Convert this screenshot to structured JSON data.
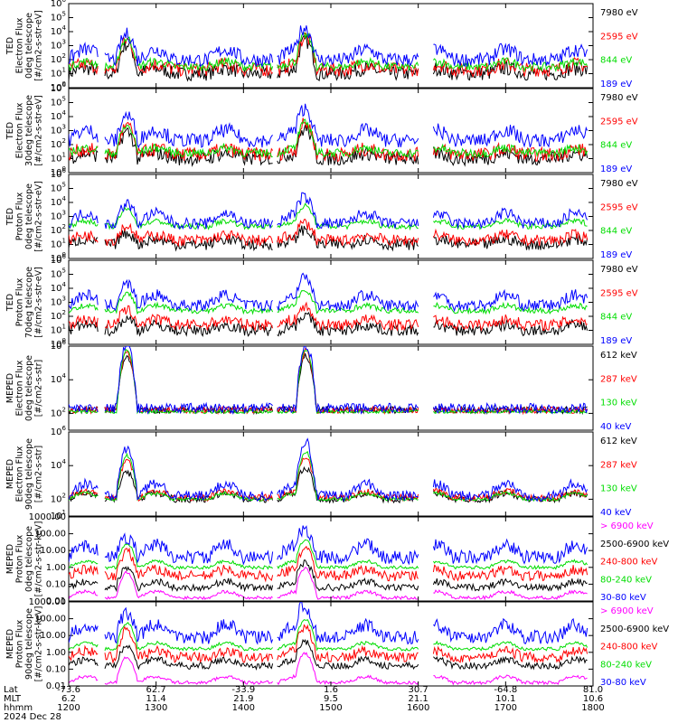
{
  "chart_data": [
    {
      "type": "line",
      "ylabel": [
        "TED",
        "Electron Flux",
        "0deg telescope",
        "[#/cm2-s-str-eV]"
      ],
      "yscale": "log",
      "ylim": [
        1,
        1000000
      ],
      "yticks": [
        {
          "base": "10",
          "exp": "0"
        },
        {
          "base": "10",
          "exp": "1"
        },
        {
          "base": "10",
          "exp": "2"
        },
        {
          "base": "10",
          "exp": "3"
        },
        {
          "base": "10",
          "exp": "4"
        },
        {
          "base": "10",
          "exp": "5"
        },
        {
          "base": "10",
          "exp": "6"
        }
      ],
      "series": [
        {
          "name": "7980 eV",
          "color": "#000000",
          "level": 1.0,
          "hump": 1.9,
          "noise": 0.5
        },
        {
          "name": "2595 eV",
          "color": "#ff0000",
          "level": 1.3,
          "hump": 1.9,
          "noise": 0.5
        },
        {
          "name": "844 eV",
          "color": "#00dd00",
          "level": 1.5,
          "hump": 1.8,
          "noise": 0.3
        },
        {
          "name": "189 eV",
          "color": "#0000ff",
          "level": 2.0,
          "hump": 1.6,
          "noise": 0.5
        }
      ]
    },
    {
      "type": "line",
      "ylabel": [
        "TED",
        "Electron Flux",
        "30deg telescope",
        "[#/cm2-s-str-eV]"
      ],
      "yscale": "log",
      "ylim": [
        1,
        1000000
      ],
      "yticks": [
        {
          "base": "10",
          "exp": "0"
        },
        {
          "base": "10",
          "exp": "1"
        },
        {
          "base": "10",
          "exp": "2"
        },
        {
          "base": "10",
          "exp": "3"
        },
        {
          "base": "10",
          "exp": "4"
        },
        {
          "base": "10",
          "exp": "5"
        },
        {
          "base": "10",
          "exp": "6"
        }
      ],
      "series": [
        {
          "name": "7980 eV",
          "color": "#000000",
          "level": 1.0,
          "hump": 1.7,
          "noise": 0.5
        },
        {
          "name": "2595 eV",
          "color": "#ff0000",
          "level": 1.3,
          "hump": 1.8,
          "noise": 0.5
        },
        {
          "name": "844 eV",
          "color": "#00dd00",
          "level": 1.4,
          "hump": 1.7,
          "noise": 0.3
        },
        {
          "name": "189 eV",
          "color": "#0000ff",
          "level": 2.3,
          "hump": 1.6,
          "noise": 0.5
        }
      ]
    },
    {
      "type": "line",
      "ylabel": [
        "TED",
        "Proton Flux",
        "0deg telescope",
        "[#/cm2-s-str-eV]"
      ],
      "yscale": "log",
      "ylim": [
        1,
        1000000
      ],
      "yticks": [
        {
          "base": "10",
          "exp": "0"
        },
        {
          "base": "10",
          "exp": "1"
        },
        {
          "base": "10",
          "exp": "2"
        },
        {
          "base": "10",
          "exp": "3"
        },
        {
          "base": "10",
          "exp": "4"
        },
        {
          "base": "10",
          "exp": "5"
        },
        {
          "base": "10",
          "exp": "6"
        }
      ],
      "series": [
        {
          "name": "7980 eV",
          "color": "#000000",
          "level": 1.0,
          "hump": 0.6,
          "noise": 0.4
        },
        {
          "name": "2595 eV",
          "color": "#ff0000",
          "level": 1.3,
          "hump": 0.8,
          "noise": 0.4
        },
        {
          "name": "844 eV",
          "color": "#00dd00",
          "level": 2.3,
          "hump": 1.0,
          "noise": 0.2
        },
        {
          "name": "189 eV",
          "color": "#0000ff",
          "level": 2.5,
          "hump": 1.2,
          "noise": 0.4
        }
      ]
    },
    {
      "type": "line",
      "ylabel": [
        "TED",
        "Proton Flux",
        "70deg telescope",
        "[#/cm2-s-str-eV]"
      ],
      "yscale": "log",
      "ylim": [
        1,
        1000000
      ],
      "yticks": [
        {
          "base": "10",
          "exp": "0"
        },
        {
          "base": "10",
          "exp": "1"
        },
        {
          "base": "10",
          "exp": "2"
        },
        {
          "base": "10",
          "exp": "3"
        },
        {
          "base": "10",
          "exp": "4"
        },
        {
          "base": "10",
          "exp": "5"
        },
        {
          "base": "10",
          "exp": "6"
        }
      ],
      "series": [
        {
          "name": "7980 eV",
          "color": "#000000",
          "level": 1.0,
          "hump": 0.6,
          "noise": 0.4
        },
        {
          "name": "2595 eV",
          "color": "#ff0000",
          "level": 1.4,
          "hump": 0.8,
          "noise": 0.4
        },
        {
          "name": "844 eV",
          "color": "#00dd00",
          "level": 2.4,
          "hump": 1.0,
          "noise": 0.2
        },
        {
          "name": "189 eV",
          "color": "#0000ff",
          "level": 2.8,
          "hump": 1.3,
          "noise": 0.4
        }
      ]
    },
    {
      "type": "line",
      "ylabel": [
        "MEPED",
        "Electron Flux",
        "0deg telescope",
        "[#/cm2-s-str]"
      ],
      "yscale": "log",
      "ylim": [
        10,
        1000000
      ],
      "yticks": [
        {
          "base": "10",
          "exp": "2"
        },
        {
          "base": "10",
          "exp": "4"
        },
        {
          "base": "10",
          "exp": "6"
        }
      ],
      "series": [
        {
          "name": "612 keV",
          "color": "#000000",
          "level": 2.2,
          "hump": 3.0,
          "noise": 0.2
        },
        {
          "name": "287 keV",
          "color": "#ff0000",
          "level": 2.2,
          "hump": 3.3,
          "noise": 0.2
        },
        {
          "name": "130 keV",
          "color": "#00dd00",
          "level": 2.1,
          "hump": 3.5,
          "noise": 0.1
        },
        {
          "name": "40 keV",
          "color": "#0000ff",
          "level": 2.3,
          "hump": 3.6,
          "noise": 0.3
        }
      ]
    },
    {
      "type": "line",
      "ylabel": [
        "MEPED",
        "Electron Flux",
        "90deg telescope",
        "[#/cm2-s-str]"
      ],
      "yscale": "log",
      "ylim": [
        10,
        1000000
      ],
      "yticks": [
        {
          "base": "10",
          "exp": "1"
        },
        {
          "base": "10",
          "exp": "2"
        },
        {
          "base": "10",
          "exp": "4"
        },
        {
          "base": "10",
          "exp": "6"
        }
      ],
      "series": [
        {
          "name": "612 keV",
          "color": "#000000",
          "level": 2.0,
          "hump": 1.4,
          "noise": 0.2
        },
        {
          "name": "287 keV",
          "color": "#ff0000",
          "level": 2.1,
          "hump": 2.0,
          "noise": 0.2
        },
        {
          "name": "130 keV",
          "color": "#00dd00",
          "level": 2.0,
          "hump": 2.4,
          "noise": 0.1
        },
        {
          "name": "40 keV",
          "color": "#0000ff",
          "level": 2.2,
          "hump": 2.6,
          "noise": 0.3
        }
      ]
    },
    {
      "type": "line",
      "ylabel": [
        "MEPED",
        "Proton Flux",
        "0deg telescope",
        "[#/cm2-s-str-keV]"
      ],
      "yscale": "log",
      "ylim": [
        0.01,
        1000
      ],
      "yticks": [
        {
          "base": "0.01",
          "exp": ""
        },
        {
          "base": "0.10",
          "exp": ""
        },
        {
          "base": "1.00",
          "exp": ""
        },
        {
          "base": "10.00",
          "exp": ""
        },
        {
          "base": "100.00",
          "exp": ""
        },
        {
          "base": "1000.00",
          "exp": ""
        }
      ],
      "series": [
        {
          "name": "> 6900 keV",
          "color": "#ff00ff",
          "level": -1.8,
          "hump": 1.3,
          "noise": 0.1
        },
        {
          "name": "2500-6900 keV",
          "color": "#000000",
          "level": -1.2,
          "hump": 1.0,
          "noise": 0.2
        },
        {
          "name": "240-800 keV",
          "color": "#ff0000",
          "level": -0.5,
          "hump": 1.2,
          "noise": 0.3
        },
        {
          "name": "80-240 keV",
          "color": "#00dd00",
          "level": 0.0,
          "hump": 1.2,
          "noise": 0.1
        },
        {
          "name": "30-80 keV",
          "color": "#0000ff",
          "level": 0.6,
          "hump": 1.0,
          "noise": 0.4
        }
      ]
    },
    {
      "type": "line",
      "ylabel": [
        "MEPED",
        "Proton Flux",
        "90deg telescope",
        "[#/cm2-s-str-keV]"
      ],
      "yscale": "log",
      "ylim": [
        0.01,
        1000
      ],
      "yticks": [
        {
          "base": "0.01",
          "exp": ""
        },
        {
          "base": "0.10",
          "exp": ""
        },
        {
          "base": "1.00",
          "exp": ""
        },
        {
          "base": "10.00",
          "exp": ""
        },
        {
          "base": "100.00",
          "exp": ""
        },
        {
          "base": "1000.00",
          "exp": ""
        }
      ],
      "series": [
        {
          "name": "> 6900 keV",
          "color": "#ff00ff",
          "level": -1.8,
          "hump": 1.3,
          "noise": 0.1
        },
        {
          "name": "2500-6900 keV",
          "color": "#000000",
          "level": -0.8,
          "hump": 1.0,
          "noise": 0.2
        },
        {
          "name": "240-800 keV",
          "color": "#ff0000",
          "level": -0.3,
          "hump": 1.4,
          "noise": 0.3
        },
        {
          "name": "80-240 keV",
          "color": "#00dd00",
          "level": 0.2,
          "hump": 1.3,
          "noise": 0.1
        },
        {
          "name": "30-80 keV",
          "color": "#0000ff",
          "level": 0.9,
          "hump": 1.2,
          "noise": 0.4
        }
      ]
    }
  ],
  "x_axis": {
    "rows": [
      {
        "label": "Lat",
        "values": [
          "-73.6",
          "62.7",
          "-33.9",
          "1.6",
          "30.7",
          "-64.8",
          "81.0"
        ]
      },
      {
        "label": "MLT",
        "values": [
          "6.2",
          "11.4",
          "21.9",
          "9.5",
          "21.1",
          "10.1",
          "10.6"
        ]
      },
      {
        "label": "hhmm",
        "values": [
          "1200",
          "1300",
          "1400",
          "1500",
          "1600",
          "1700",
          "1800"
        ]
      }
    ],
    "date": "2024 Dec 28",
    "xlim": [
      1200,
      1800
    ]
  }
}
